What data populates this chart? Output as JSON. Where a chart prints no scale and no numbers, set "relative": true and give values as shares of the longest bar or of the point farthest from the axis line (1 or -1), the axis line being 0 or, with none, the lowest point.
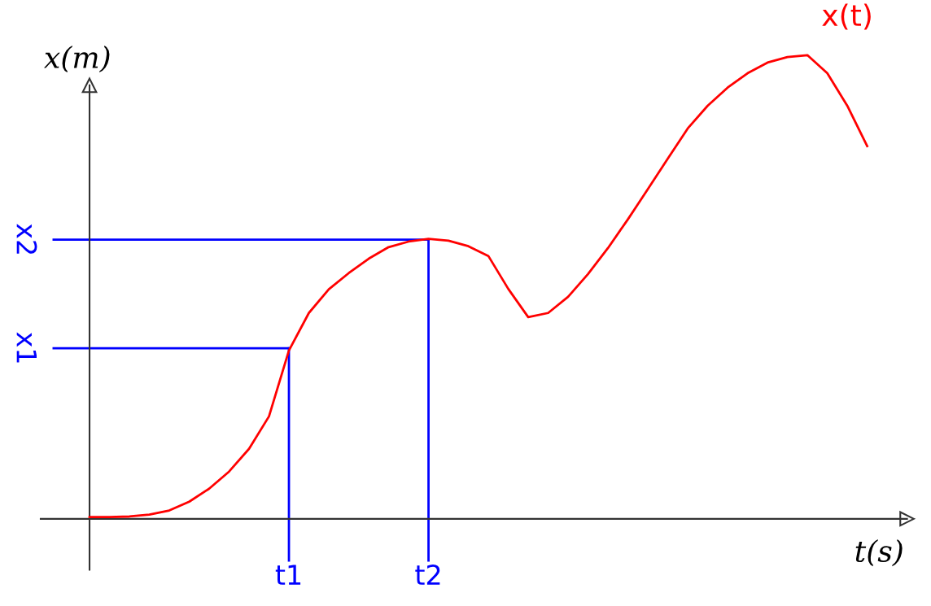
{
  "chart_data": {
    "type": "line",
    "relative": true,
    "xlabel": "t(s)",
    "ylabel": "x(m)",
    "marker": "none",
    "line_style": "solid",
    "categories": [
      null,
      null,
      null,
      null,
      null,
      null,
      null,
      null,
      null,
      null,
      "t1",
      null,
      null,
      null,
      null,
      null,
      null,
      "t2",
      null,
      null,
      null,
      null,
      null,
      null,
      null,
      null,
      null,
      null,
      null,
      null,
      null,
      null,
      null,
      null,
      null,
      null,
      null,
      null,
      null,
      null
    ],
    "series": [
      {
        "name": "x(t)",
        "color": "#ff0000",
        "values": [
          0.004,
          0.004,
          0.005,
          0.009,
          0.018,
          0.037,
          0.065,
          0.102,
          0.151,
          0.221,
          0.363,
          0.444,
          0.495,
          0.53,
          0.561,
          0.586,
          0.598,
          0.604,
          0.6,
          0.588,
          0.567,
          0.496,
          0.435,
          0.444,
          0.479,
          0.528,
          0.584,
          0.646,
          0.711,
          0.777,
          0.842,
          0.891,
          0.93,
          0.961,
          0.984,
          0.996,
          1,
          0.961,
          0.891,
          0.804
        ]
      }
    ],
    "ref_lines": [
      {
        "axis": "y",
        "value": 0.368,
        "label": "x1",
        "color": "#0000ff"
      },
      {
        "axis": "y",
        "value": 0.602,
        "label": "x2",
        "color": "#0000ff"
      },
      {
        "axis": "x",
        "value": "t1",
        "color": "#0000ff"
      },
      {
        "axis": "x",
        "value": "t2",
        "color": "#0000ff"
      }
    ]
  }
}
